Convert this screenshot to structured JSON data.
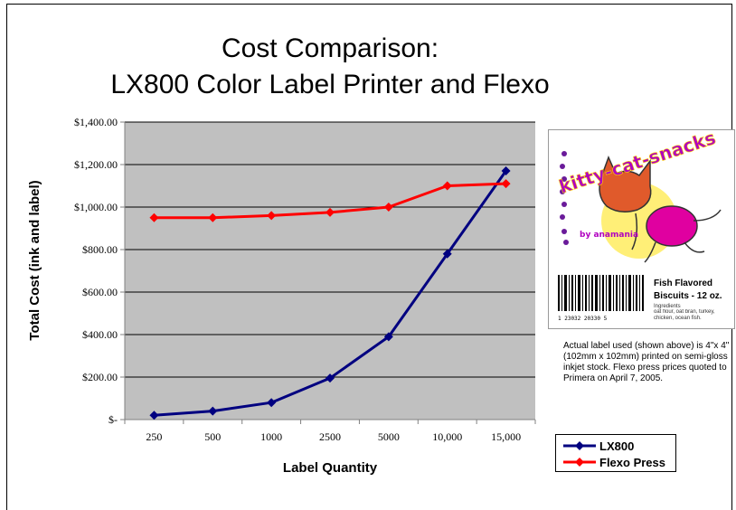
{
  "chart_data": {
    "type": "line",
    "title_lines": [
      "Cost Comparison:",
      "LX800 Color Label Printer and Flexo"
    ],
    "xlabel": "Label Quantity",
    "ylabel": "Total Cost (ink and label)",
    "categories": [
      "250",
      "500",
      "1000",
      "2500",
      "5000",
      "10,000",
      "15,000"
    ],
    "ylim": [
      0,
      1400
    ],
    "yticks": [
      {
        "value": 0,
        "label": "$-"
      },
      {
        "value": 200,
        "label": "$200.00"
      },
      {
        "value": 400,
        "label": "$400.00"
      },
      {
        "value": 600,
        "label": "$600.00"
      },
      {
        "value": 800,
        "label": "$800.00"
      },
      {
        "value": 1000,
        "label": "$1,000.00"
      },
      {
        "value": 1200,
        "label": "$1,200.00"
      },
      {
        "value": 1400,
        "label": "$1,400.00"
      }
    ],
    "grid": true,
    "plot_background": "#c0c0c0",
    "legend_position": "bottom-right",
    "series": [
      {
        "name": "LX800",
        "color": "#000080",
        "marker": "diamond",
        "values": [
          20,
          40,
          80,
          195,
          390,
          780,
          1170
        ]
      },
      {
        "name": "Flexo Press",
        "color": "#ff0000",
        "marker": "diamond",
        "values": [
          950,
          950,
          960,
          975,
          1000,
          1100,
          1110
        ]
      }
    ]
  },
  "label_image": {
    "brand": "kitty-cat-snacks",
    "maker": "by anamania",
    "product_line1": "Fish Flavored",
    "product_line2": "Biscuits - 12 oz.",
    "ingredients_title": "Ingredients",
    "ingredients": "oat flour, oat bran, turkey, chicken, ocean fish.",
    "barcode_digits": "1 23032 20330 5"
  },
  "note": "Actual label used (shown above) is 4\"x 4\" (102mm x 102mm) printed on semi-gloss inkjet stock.  Flexo press prices quoted to Primera on April 7, 2005."
}
